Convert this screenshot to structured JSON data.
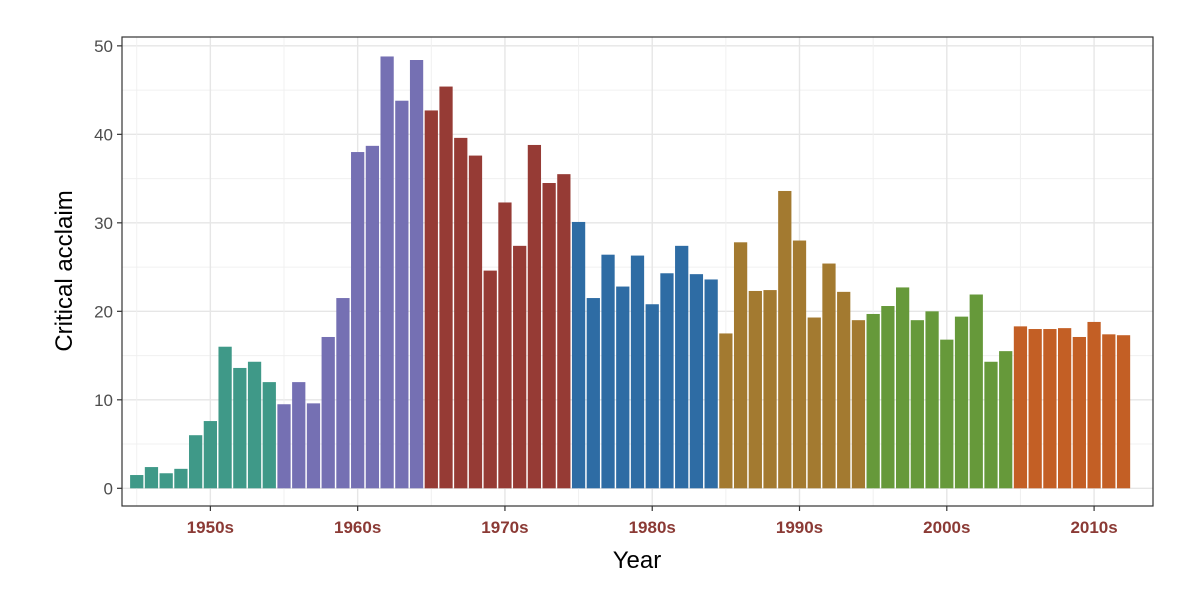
{
  "chart_data": {
    "type": "bar",
    "xlabel": "Year",
    "ylabel": "Critical acclaim",
    "xlim": [
      1944,
      2014
    ],
    "ylim": [
      -2,
      51
    ],
    "y_ticks": [
      0,
      10,
      20,
      30,
      40,
      50
    ],
    "x_grid_years": [
      1945,
      1950,
      1955,
      1960,
      1965,
      1970,
      1975,
      1980,
      1985,
      1990,
      1995,
      2000,
      2005,
      2010
    ],
    "decade_labels": [
      {
        "year": 1950,
        "label": "1950s"
      },
      {
        "year": 1960,
        "label": "1960s"
      },
      {
        "year": 1970,
        "label": "1970s"
      },
      {
        "year": 1980,
        "label": "1980s"
      },
      {
        "year": 1990,
        "label": "1990s"
      },
      {
        "year": 2000,
        "label": "2000s"
      },
      {
        "year": 2010,
        "label": "2010s"
      }
    ],
    "decade_label_color": "#8b3a35",
    "grid": true,
    "series": [
      {
        "color": "#3f9988",
        "years": [
          1945,
          1946,
          1947,
          1948,
          1949,
          1950,
          1951,
          1952,
          1953,
          1954
        ],
        "values": [
          1.5,
          2.4,
          1.7,
          2.2,
          6.0,
          7.6,
          16.0,
          13.6,
          14.3,
          12.0
        ]
      },
      {
        "color": "#7570b3",
        "years": [
          1955,
          1956,
          1957,
          1958,
          1959,
          1960,
          1961,
          1962,
          1963,
          1964
        ],
        "values": [
          9.5,
          12.0,
          9.6,
          17.1,
          21.5,
          38.0,
          38.7,
          48.8,
          43.8,
          48.4
        ]
      },
      {
        "color": "#963b35",
        "years": [
          1965,
          1966,
          1967,
          1968,
          1969,
          1970,
          1971,
          1972,
          1973,
          1974
        ],
        "values": [
          42.7,
          45.4,
          39.6,
          37.6,
          24.6,
          32.3,
          27.4,
          38.8,
          34.5,
          35.5
        ]
      },
      {
        "color": "#2e6ca4",
        "years": [
          1975,
          1976,
          1977,
          1978,
          1979,
          1980,
          1981,
          1982,
          1983,
          1984
        ],
        "values": [
          30.1,
          21.5,
          26.4,
          22.8,
          26.3,
          20.8,
          24.3,
          27.4,
          24.2,
          23.6
        ]
      },
      {
        "color": "#a37a30",
        "years": [
          1985,
          1986,
          1987,
          1988,
          1989,
          1990,
          1991,
          1992,
          1993,
          1994
        ],
        "values": [
          17.5,
          27.8,
          22.3,
          22.4,
          33.6,
          28.0,
          19.3,
          25.4,
          22.2,
          19.0
        ]
      },
      {
        "color": "#66993a",
        "years": [
          1995,
          1996,
          1997,
          1998,
          1999,
          2000,
          2001,
          2002,
          2003,
          2004
        ],
        "values": [
          19.7,
          20.6,
          22.7,
          19.0,
          20.0,
          16.8,
          19.4,
          21.9,
          14.3,
          15.5
        ]
      },
      {
        "color": "#c35f25",
        "years": [
          2005,
          2006,
          2007,
          2008,
          2009,
          2010,
          2011,
          2012
        ],
        "values": [
          18.3,
          18.0,
          18.0,
          18.1,
          17.1,
          18.8,
          17.4,
          17.3
        ]
      }
    ]
  }
}
